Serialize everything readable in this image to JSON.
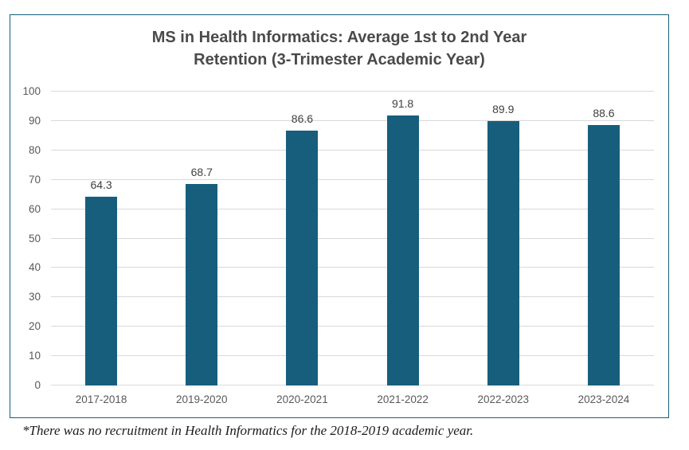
{
  "chart_data": {
    "type": "bar",
    "title": "MS in Health Informatics: Average 1st to 2nd Year Retention (3-Trimester Academic Year)",
    "title_lines": [
      "MS in Health Informatics: Average 1st to 2nd Year",
      "Retention (3-Trimester Academic Year)"
    ],
    "categories": [
      "2017-2018",
      "2019-2020",
      "2020-2021",
      "2021-2022",
      "2022-2023",
      "2023-2024"
    ],
    "values": [
      64.3,
      68.7,
      86.6,
      91.8,
      89.9,
      88.6
    ],
    "xlabel": "",
    "ylabel": "",
    "ylim": [
      0,
      100
    ],
    "yticks": [
      0,
      10,
      20,
      30,
      40,
      50,
      60,
      70,
      80,
      90,
      100
    ],
    "grid": true,
    "legend_position": "none",
    "bar_color": "#175E7D",
    "border_color": "#175E7D",
    "gridline_color": "#D9D9D9",
    "axis_label_color": "#595959",
    "data_label_color": "#404040",
    "title_color": "#4A4A4A"
  },
  "footnote": "*There was no recruitment in Health Informatics for the 2018-2019 academic year."
}
